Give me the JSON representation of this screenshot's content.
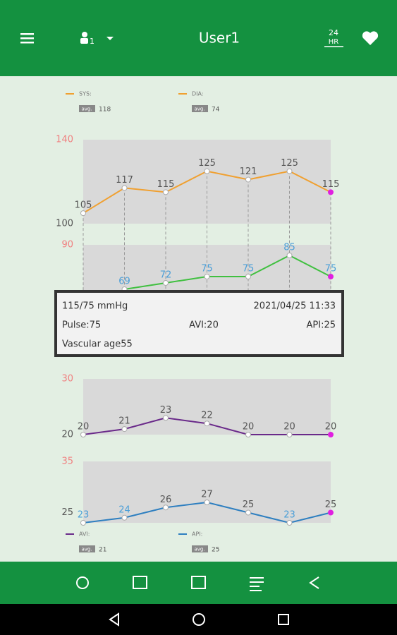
{
  "header": {
    "title": "User1",
    "user_number": "1",
    "icon_24": "24",
    "icon_hr": "HR"
  },
  "legend": {
    "badge": "avg.",
    "sys": {
      "label": "SYS:",
      "avg": "118"
    },
    "dia": {
      "label": "DIA:",
      "avg": "74"
    },
    "avi": {
      "label": "AVI:",
      "avg": "21"
    },
    "api": {
      "label": "API:",
      "avg": "25"
    }
  },
  "tooltip": {
    "pressure": "115/75 mmHg",
    "datetime": "2021/04/25 11:33",
    "pulse": "Pulse:75",
    "avi": "AVI:20",
    "api": "API:25",
    "vascular_age": "Vascular age55"
  },
  "chart_data": [
    {
      "type": "line",
      "ylim": [
        100,
        140
      ],
      "yticks": [
        140,
        100
      ],
      "highlight_color": "#e020e0",
      "series": [
        {
          "name": "SYS",
          "color": "#f0a030",
          "values": [
            105,
            117,
            115,
            125,
            121,
            125,
            115
          ]
        }
      ]
    },
    {
      "type": "line",
      "ylim": [
        66,
        90
      ],
      "yticks": [
        90
      ],
      "highlight_color": "#e020e0",
      "series": [
        {
          "name": "DIA",
          "color": "#40c040",
          "values": [
            null,
            69,
            72,
            75,
            75,
            85,
            75
          ]
        }
      ]
    },
    {
      "type": "line",
      "ylim": [
        20,
        30
      ],
      "yticks": [
        30,
        20
      ],
      "highlight_color": "#e020e0",
      "series": [
        {
          "name": "AVI",
          "color": "#6a2a8a",
          "values": [
            20,
            21,
            23,
            22,
            20,
            20,
            20
          ]
        }
      ]
    },
    {
      "type": "line",
      "ylim": [
        23,
        35
      ],
      "yticks": [
        35,
        25
      ],
      "highlight_color": "#e020e0",
      "series": [
        {
          "name": "API",
          "color": "#2e7fc0",
          "values": [
            23,
            24,
            26,
            27,
            25,
            23,
            25
          ]
        }
      ]
    }
  ]
}
